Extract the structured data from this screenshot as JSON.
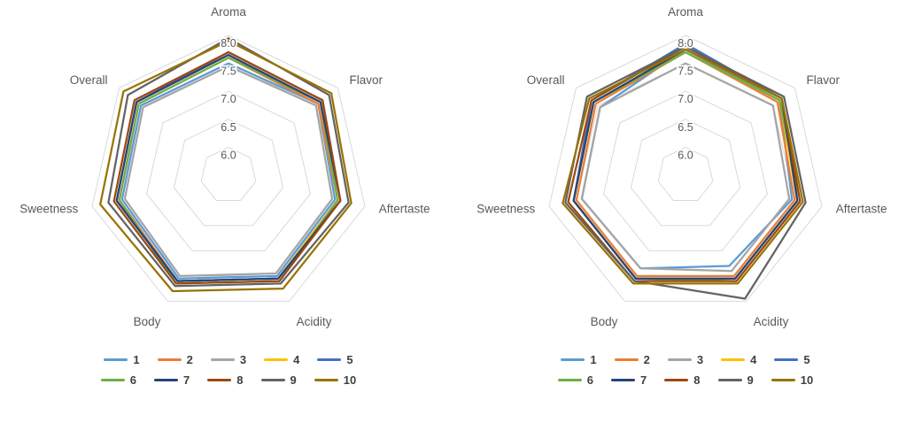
{
  "chart_data": [
    {
      "id": "left",
      "type": "radar",
      "title": "",
      "categories": [
        "Aroma",
        "Flavor",
        "Aftertaste",
        "Acidity",
        "Body",
        "Sweetness",
        "Overall"
      ],
      "axis_min": 5.5,
      "axis_max": 8.0,
      "ticks": [
        6.0,
        6.5,
        7.0,
        7.5,
        8.0
      ],
      "tick_labels": [
        "6.0",
        "6.5",
        "7.0",
        "7.5",
        "8.0"
      ],
      "grid": true,
      "legend_position": "bottom",
      "series": [
        {
          "name": "1",
          "color": "#5B9BD5",
          "values": [
            7.5,
            7.55,
            7.45,
            7.5,
            7.55,
            7.45,
            7.5
          ]
        },
        {
          "name": "2",
          "color": "#ED7D31",
          "values": [
            7.6,
            7.55,
            7.5,
            7.55,
            7.6,
            7.5,
            7.55
          ]
        },
        {
          "name": "3",
          "color": "#A5A5A5",
          "values": [
            7.45,
            7.5,
            7.4,
            7.45,
            7.5,
            7.4,
            7.45
          ]
        },
        {
          "name": "4",
          "color": "#FFC000",
          "values": [
            7.65,
            7.6,
            7.5,
            7.55,
            7.6,
            7.55,
            7.6
          ]
        },
        {
          "name": "5",
          "color": "#4472C4",
          "values": [
            7.7,
            7.65,
            7.55,
            7.55,
            7.6,
            7.55,
            7.6
          ]
        },
        {
          "name": "6",
          "color": "#70AD47",
          "values": [
            7.6,
            7.6,
            7.5,
            7.6,
            7.65,
            7.5,
            7.55
          ]
        },
        {
          "name": "7",
          "color": "#264478",
          "values": [
            7.65,
            7.6,
            7.55,
            7.55,
            7.6,
            7.55,
            7.6
          ]
        },
        {
          "name": "8",
          "color": "#9E480E",
          "values": [
            7.7,
            7.65,
            7.55,
            7.6,
            7.65,
            7.6,
            7.65
          ]
        },
        {
          "name": "9",
          "color": "#636363",
          "values": [
            7.95,
            7.8,
            7.7,
            7.65,
            7.7,
            7.7,
            7.8
          ]
        },
        {
          "name": "10",
          "color": "#997300",
          "values": [
            7.9,
            7.85,
            7.75,
            7.75,
            7.8,
            7.85,
            7.9
          ]
        }
      ]
    },
    {
      "id": "right",
      "type": "radar",
      "title": "",
      "categories": [
        "Aroma",
        "Flavor",
        "Aftertaste",
        "Acidity",
        "Body",
        "Sweetness",
        "Overall"
      ],
      "axis_min": 5.5,
      "axis_max": 8.0,
      "ticks": [
        6.0,
        6.5,
        7.0,
        7.5,
        8.0
      ],
      "tick_labels": [
        "6.0",
        "6.5",
        "7.0",
        "7.5",
        "8.0"
      ],
      "grid": true,
      "legend_position": "bottom",
      "series": [
        {
          "name": "1",
          "color": "#5B9BD5",
          "values": [
            7.75,
            7.65,
            7.45,
            7.3,
            7.35,
            7.4,
            7.45
          ]
        },
        {
          "name": "2",
          "color": "#ED7D31",
          "values": [
            7.7,
            7.6,
            7.5,
            7.5,
            7.5,
            7.5,
            7.55
          ]
        },
        {
          "name": "3",
          "color": "#A5A5A5",
          "values": [
            7.5,
            7.5,
            7.4,
            7.4,
            7.35,
            7.4,
            7.45
          ]
        },
        {
          "name": "4",
          "color": "#FFC000",
          "values": [
            7.7,
            7.65,
            7.55,
            7.55,
            7.55,
            7.55,
            7.6
          ]
        },
        {
          "name": "5",
          "color": "#4472C4",
          "values": [
            7.85,
            7.7,
            7.55,
            7.55,
            7.55,
            7.55,
            7.65
          ]
        },
        {
          "name": "6",
          "color": "#70AD47",
          "values": [
            7.7,
            7.65,
            7.6,
            7.6,
            7.55,
            7.55,
            7.6
          ]
        },
        {
          "name": "7",
          "color": "#264478",
          "values": [
            7.75,
            7.7,
            7.55,
            7.55,
            7.55,
            7.55,
            7.6
          ]
        },
        {
          "name": "8",
          "color": "#9E480E",
          "values": [
            7.8,
            7.7,
            7.6,
            7.6,
            7.6,
            7.65,
            7.65
          ]
        },
        {
          "name": "9",
          "color": "#636363",
          "values": [
            7.8,
            7.75,
            7.7,
            7.95,
            7.6,
            7.7,
            7.75
          ]
        },
        {
          "name": "10",
          "color": "#997300",
          "values": [
            7.75,
            7.7,
            7.65,
            7.65,
            7.65,
            7.75,
            7.7
          ]
        }
      ]
    }
  ],
  "style": {
    "grid_color": "#d9d9d9",
    "axis_label_color": "#595959",
    "tick_label_color": "#595959",
    "legend_text_color": "#404040",
    "background": "#ffffff"
  }
}
